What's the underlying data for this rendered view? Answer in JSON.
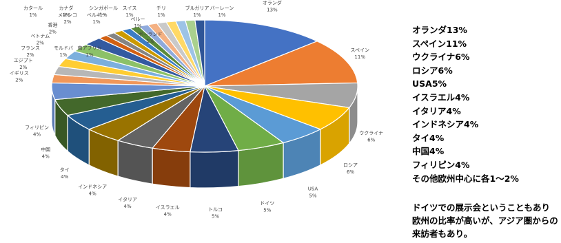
{
  "legend": [
    "オランダ13%",
    "スペイン11%",
    "ウクライナ6%",
    "ロシア6%",
    "USA5%",
    "イスラエル4%",
    "イタリア4%",
    "インドネシア4%",
    "タイ4%",
    "中国4%",
    "フィリピン4%",
    "その他欧州中心に各1～2%"
  ],
  "note": "ドイツでの展示会ということもあり欧州の比率が高いが、アジア圏からの来訪者もあり。",
  "chart_data": {
    "type": "pie",
    "style": "3d",
    "slices": [
      {
        "label": "オランダ",
        "value": 13,
        "color": "#4472c4"
      },
      {
        "label": "スペイン",
        "value": 11,
        "color": "#ed7d31"
      },
      {
        "label": "ウクライナ",
        "value": 6,
        "color": "#a5a5a5"
      },
      {
        "label": "ロシア",
        "value": 6,
        "color": "#ffc000"
      },
      {
        "label": "USA",
        "value": 5,
        "color": "#5b9bd5"
      },
      {
        "label": "ドイツ",
        "value": 5,
        "color": "#70ad47"
      },
      {
        "label": "トルコ",
        "value": 5,
        "color": "#264478"
      },
      {
        "label": "イスラエル",
        "value": 4,
        "color": "#9e480e"
      },
      {
        "label": "イタリア",
        "value": 4,
        "color": "#636363"
      },
      {
        "label": "インドネシア",
        "value": 4,
        "color": "#997300"
      },
      {
        "label": "タイ",
        "value": 4,
        "color": "#255e91"
      },
      {
        "label": "中国",
        "value": 4,
        "color": "#43682b"
      },
      {
        "label": "フィリピン",
        "value": 4,
        "color": "#698ed0"
      },
      {
        "label": "イギリス",
        "value": 2,
        "color": "#f1975a"
      },
      {
        "label": "エジプト",
        "value": 2,
        "color": "#b7b7b7"
      },
      {
        "label": "フランス",
        "value": 2,
        "color": "#ffcd33"
      },
      {
        "label": "ベトナム",
        "value": 2,
        "color": "#7cafdd"
      },
      {
        "label": "香港",
        "value": 2,
        "color": "#8cc168"
      },
      {
        "label": "メキシコ",
        "value": 2,
        "color": "#335aa1"
      },
      {
        "label": "カタール",
        "value": 1,
        "color": "#d26012"
      },
      {
        "label": "カナダ",
        "value": 1,
        "color": "#848484"
      },
      {
        "label": "シンガポール",
        "value": 1,
        "color": "#cc9a00"
      },
      {
        "label": "スイス",
        "value": 1,
        "color": "#3c7dc4"
      },
      {
        "label": "チリ",
        "value": 1,
        "color": "#5a8a39"
      },
      {
        "label": "ブルガリア",
        "value": 1,
        "color": "#8faadc"
      },
      {
        "label": "バーレーン",
        "value": 1,
        "color": "#f4b183"
      },
      {
        "label": "ベルギー",
        "value": 1,
        "color": "#c9c9c9"
      },
      {
        "label": "ペルー",
        "value": 1,
        "color": "#ffd966"
      },
      {
        "label": "ポーランド",
        "value": 1,
        "color": "#9dc3e6"
      },
      {
        "label": "南アフリカ",
        "value": 1,
        "color": "#a9d18e"
      },
      {
        "label": "モルドバ",
        "value": 1,
        "color": "#2f5597"
      }
    ]
  }
}
